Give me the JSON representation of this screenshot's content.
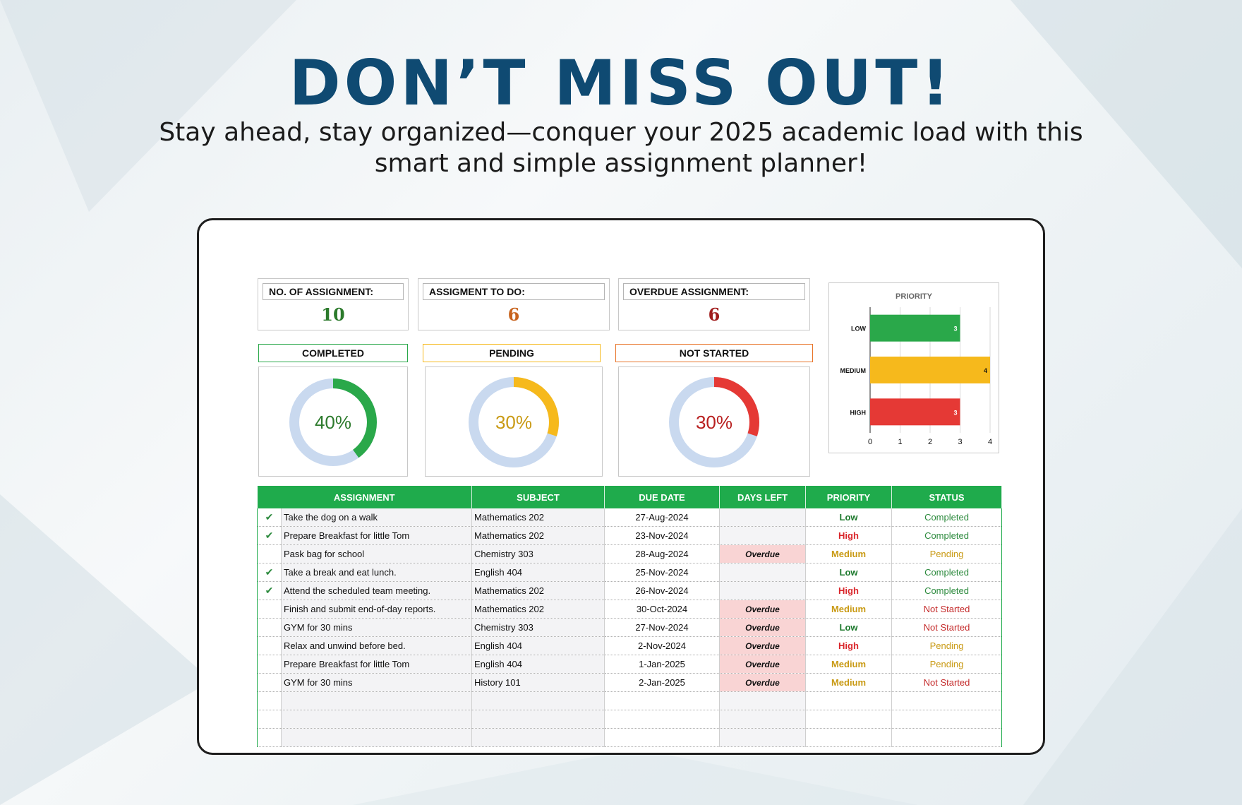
{
  "banner": {
    "headline": "DON’T MISS OUT!",
    "subline_1": "Stay ahead, stay organized—conquer your 2025 academic load with this",
    "subline_2": "smart and simple assignment planner!"
  },
  "kpis": {
    "total_label": "NO. OF ASSIGNMENT:",
    "total_value": "10",
    "todo_label": "ASSIGMENT TO DO:",
    "todo_value": "6",
    "overdue_label": "OVERDUE ASSIGNMENT:",
    "overdue_value": "6"
  },
  "status_cards": {
    "completed": {
      "label": "COMPLETED",
      "percent": 40,
      "text": "40%",
      "color": "#2aa84a",
      "text_color": "#2c7a2c"
    },
    "pending": {
      "label": "PENDING",
      "percent": 30,
      "text": "30%",
      "color": "#f6b91c",
      "text_color": "#c99a14"
    },
    "not_started": {
      "label": "NOT STARTED",
      "percent": 30,
      "text": "30%",
      "color": "#e53935",
      "text_color": "#b81f1f"
    },
    "track_color": "#c9d9ef"
  },
  "chart_data": {
    "type": "bar",
    "orientation": "horizontal",
    "title": "PRIORITY",
    "categories": [
      "LOW",
      "MEDIUM",
      "HIGH"
    ],
    "values": [
      3,
      4,
      3
    ],
    "colors": [
      "#2aa84a",
      "#f6b91c",
      "#e53935"
    ],
    "xlim": [
      0,
      4
    ],
    "xticks": [
      "0",
      "1",
      "2",
      "3",
      "4"
    ],
    "grid": true,
    "legend": "none"
  },
  "table": {
    "headers": [
      "ASSIGNMENT",
      "SUBJECT",
      "DUE DATE",
      "DAYS LEFT",
      "PRIORITY",
      "STATUS"
    ],
    "rows": [
      {
        "check": "✔",
        "assignment": "Take the dog on a walk",
        "subject": "Mathematics 202",
        "due": "27-Aug-2024",
        "days_left": "",
        "priority": "Low",
        "status": "Completed"
      },
      {
        "check": "✔",
        "assignment": "Prepare Breakfast for little Tom",
        "subject": "Mathematics 202",
        "due": "23-Nov-2024",
        "days_left": "",
        "priority": "High",
        "status": "Completed"
      },
      {
        "check": "",
        "assignment": "Pask bag for school",
        "subject": "Chemistry 303",
        "due": "28-Aug-2024",
        "days_left": "Overdue",
        "priority": "Medium",
        "status": "Pending"
      },
      {
        "check": "✔",
        "assignment": "Take a break and eat lunch.",
        "subject": "English 404",
        "due": "25-Nov-2024",
        "days_left": "",
        "priority": "Low",
        "status": "Completed"
      },
      {
        "check": "✔",
        "assignment": "Attend the scheduled team meeting.",
        "subject": "Mathematics 202",
        "due": "26-Nov-2024",
        "days_left": "",
        "priority": "High",
        "status": "Completed"
      },
      {
        "check": "",
        "assignment": "Finish and submit end-of-day reports.",
        "subject": "Mathematics 202",
        "due": "30-Oct-2024",
        "days_left": "Overdue",
        "priority": "Medium",
        "status": "Not Started"
      },
      {
        "check": "",
        "assignment": "GYM for 30 mins",
        "subject": "Chemistry 303",
        "due": "27-Nov-2024",
        "days_left": "Overdue",
        "priority": "Low",
        "status": "Not Started"
      },
      {
        "check": "",
        "assignment": "Relax and unwind before bed.",
        "subject": "English 404",
        "due": "2-Nov-2024",
        "days_left": "Overdue",
        "priority": "High",
        "status": "Pending"
      },
      {
        "check": "",
        "assignment": "Prepare Breakfast for little Tom",
        "subject": "English 404",
        "due": "1-Jan-2025",
        "days_left": "Overdue",
        "priority": "Medium",
        "status": "Pending"
      },
      {
        "check": "",
        "assignment": "GYM for 30 mins",
        "subject": "History 101",
        "due": "2-Jan-2025",
        "days_left": "Overdue",
        "priority": "Medium",
        "status": "Not Started"
      }
    ],
    "empty_rows": 3
  }
}
